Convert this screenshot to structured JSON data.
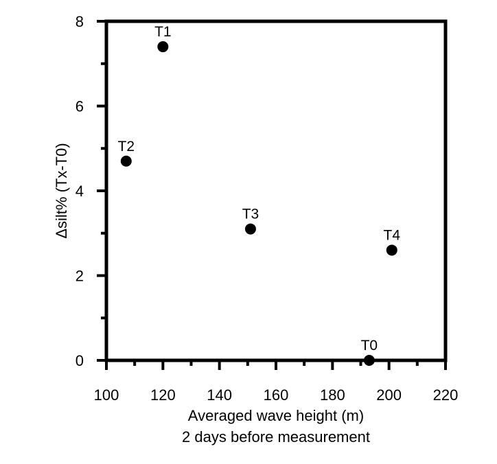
{
  "chart_data": {
    "type": "scatter",
    "title": "",
    "xlabel": "Averaged wave height (m)",
    "xlabel_line2": "2 days before measurement",
    "ylabel": "Δsilt% (Tx-T0)",
    "xlim": [
      100,
      220
    ],
    "ylim": [
      0,
      8
    ],
    "xticks": [
      "100",
      "120",
      "140",
      "160",
      "180",
      "200",
      "220"
    ],
    "yticks": [
      "0",
      "2",
      "4",
      "6",
      "8"
    ],
    "grid": false,
    "legend": "none",
    "marker_color": "#000000",
    "points": [
      {
        "label": "T1",
        "x": 120,
        "y": 7.4
      },
      {
        "label": "T2",
        "x": 107,
        "y": 4.7
      },
      {
        "label": "T3",
        "x": 151,
        "y": 3.1
      },
      {
        "label": "T4",
        "x": 201,
        "y": 2.6
      },
      {
        "label": "T0",
        "x": 193,
        "y": 0
      }
    ]
  }
}
